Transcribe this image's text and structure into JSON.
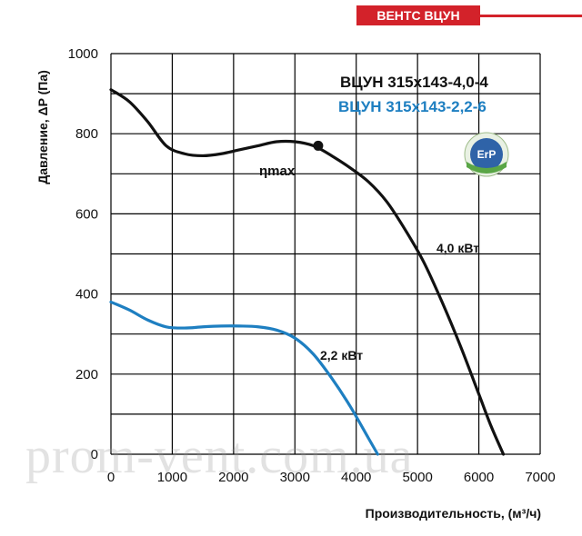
{
  "header": {
    "brand": "ВЕНТС ВЦУН"
  },
  "watermark": "prom-vent.com.ua",
  "chart_data": {
    "type": "line",
    "xlabel": "Производительность, (м³/ч)",
    "ylabel": "Давление, ΔP (Па)",
    "xlim": [
      0,
      7000
    ],
    "ylim": [
      0,
      1000
    ],
    "xticks": [
      "0",
      "1000",
      "2000",
      "3000",
      "4000",
      "5000",
      "6000",
      "7000"
    ],
    "yticks": [
      "0",
      "200",
      "400",
      "600",
      "800",
      "1000"
    ],
    "grid": true,
    "legend_position": "top-right",
    "series": [
      {
        "name": "ВЦУН 315х143-4,0-4",
        "color": "#111111",
        "power_label": "4,0 кВт",
        "x": [
          0,
          300,
          600,
          900,
          1200,
          1500,
          1800,
          2100,
          2400,
          2700,
          3000,
          3300,
          3600,
          3900,
          4200,
          4500,
          4800,
          5100,
          5400,
          5700,
          6000,
          6200,
          6400
        ],
        "y": [
          910,
          880,
          830,
          770,
          750,
          745,
          750,
          760,
          770,
          780,
          780,
          770,
          745,
          715,
          680,
          630,
          560,
          480,
          380,
          270,
          150,
          70,
          0
        ]
      },
      {
        "name": "ВЦУН 315х143-2,2-6",
        "color": "#1e7fc1",
        "power_label": "2,2 кВт",
        "x": [
          0,
          300,
          600,
          900,
          1200,
          1500,
          1800,
          2100,
          2400,
          2700,
          3000,
          3300,
          3600,
          3900,
          4200,
          4350
        ],
        "y": [
          380,
          360,
          335,
          318,
          315,
          318,
          320,
          320,
          318,
          310,
          290,
          250,
          190,
          120,
          40,
          0
        ]
      }
    ],
    "annotations": [
      {
        "label": "ηmax",
        "x": 3380,
        "y": 770
      }
    ]
  }
}
